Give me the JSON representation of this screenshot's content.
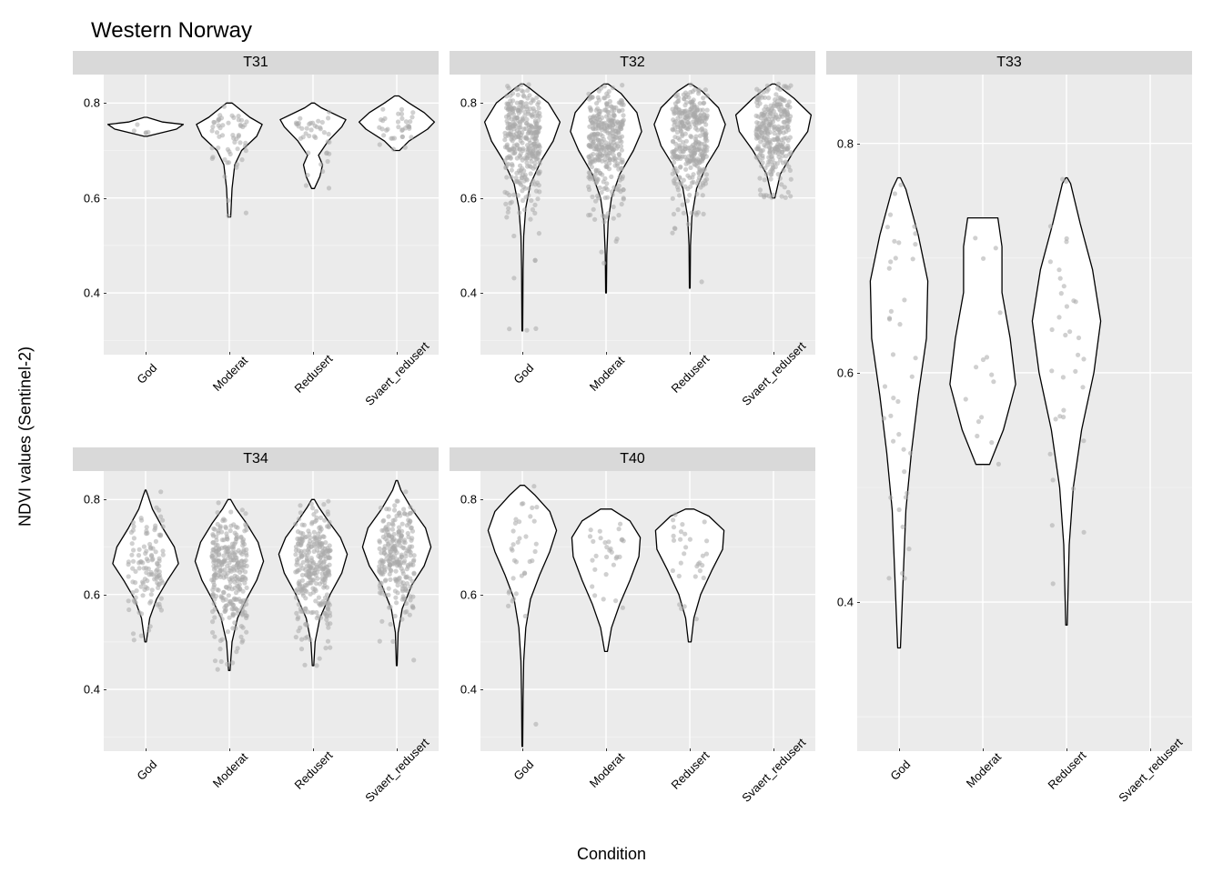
{
  "title": "Western Norway",
  "ylabel": "NDVI values (Sentinel-2)",
  "xlabel": "Condition",
  "categories": [
    "God",
    "Moderat",
    "Redusert",
    "Svaert_redusert"
  ],
  "y_ticks": [
    0.4,
    0.6,
    0.8
  ],
  "y_range": [
    0.27,
    0.86
  ],
  "panel_bg": "#ebebeb",
  "strip_bg": "#d9d9d9",
  "grid_major_color": "#ffffff",
  "grid_minor_color": "#f5f5f5",
  "violin_fill": "#ffffff",
  "violin_stroke": "#000000",
  "violin_stroke_width": 1.3,
  "point_color": "#a9a9a9",
  "point_opacity": 0.55,
  "point_radius": 2.6,
  "title_fontsize": 24,
  "axis_label_fontsize": 18,
  "tick_fontsize": 13,
  "strip_fontsize": 16,
  "jitter_width": 0.07,
  "facets": [
    {
      "label": "T31",
      "row": 0,
      "col": 0,
      "violins": {
        "God": {
          "min": 0.73,
          "max": 0.77,
          "profile": [
            [
              0.73,
              0.02
            ],
            [
              0.745,
              0.45
            ],
            [
              0.755,
              0.55
            ],
            [
              0.76,
              0.25
            ],
            [
              0.77,
              0.02
            ]
          ],
          "n": 5
        },
        "Moderat": {
          "min": 0.56,
          "max": 0.8,
          "profile": [
            [
              0.56,
              0.02
            ],
            [
              0.62,
              0.04
            ],
            [
              0.67,
              0.08
            ],
            [
              0.7,
              0.18
            ],
            [
              0.73,
              0.4
            ],
            [
              0.755,
              0.48
            ],
            [
              0.77,
              0.3
            ],
            [
              0.8,
              0.04
            ]
          ],
          "n": 55
        },
        "Redusert": {
          "min": 0.62,
          "max": 0.8,
          "profile": [
            [
              0.62,
              0.02
            ],
            [
              0.645,
              0.1
            ],
            [
              0.67,
              0.14
            ],
            [
              0.69,
              0.08
            ],
            [
              0.72,
              0.22
            ],
            [
              0.75,
              0.42
            ],
            [
              0.765,
              0.48
            ],
            [
              0.79,
              0.12
            ],
            [
              0.8,
              0.02
            ]
          ],
          "n": 40
        },
        "Svaert_redusert": {
          "min": 0.7,
          "max": 0.815,
          "profile": [
            [
              0.7,
              0.04
            ],
            [
              0.72,
              0.18
            ],
            [
              0.745,
              0.45
            ],
            [
              0.76,
              0.55
            ],
            [
              0.78,
              0.4
            ],
            [
              0.8,
              0.18
            ],
            [
              0.815,
              0.03
            ]
          ],
          "n": 35
        }
      }
    },
    {
      "label": "T32",
      "row": 0,
      "col": 1,
      "violins": {
        "God": {
          "min": 0.32,
          "max": 0.84,
          "profile": [
            [
              0.32,
              0.005
            ],
            [
              0.45,
              0.01
            ],
            [
              0.52,
              0.02
            ],
            [
              0.58,
              0.05
            ],
            [
              0.63,
              0.12
            ],
            [
              0.68,
              0.28
            ],
            [
              0.72,
              0.45
            ],
            [
              0.76,
              0.55
            ],
            [
              0.8,
              0.38
            ],
            [
              0.83,
              0.12
            ],
            [
              0.84,
              0.02
            ]
          ],
          "n": 500
        },
        "Moderat": {
          "min": 0.4,
          "max": 0.84,
          "profile": [
            [
              0.4,
              0.005
            ],
            [
              0.48,
              0.01
            ],
            [
              0.55,
              0.03
            ],
            [
              0.6,
              0.08
            ],
            [
              0.65,
              0.2
            ],
            [
              0.7,
              0.4
            ],
            [
              0.74,
              0.52
            ],
            [
              0.78,
              0.45
            ],
            [
              0.82,
              0.22
            ],
            [
              0.84,
              0.03
            ]
          ],
          "n": 500
        },
        "Redusert": {
          "min": 0.41,
          "max": 0.84,
          "profile": [
            [
              0.41,
              0.005
            ],
            [
              0.5,
              0.01
            ],
            [
              0.56,
              0.03
            ],
            [
              0.62,
              0.1
            ],
            [
              0.67,
              0.25
            ],
            [
              0.71,
              0.42
            ],
            [
              0.755,
              0.52
            ],
            [
              0.79,
              0.42
            ],
            [
              0.825,
              0.18
            ],
            [
              0.84,
              0.02
            ]
          ],
          "n": 500
        },
        "Svaert_redusert": {
          "min": 0.6,
          "max": 0.84,
          "profile": [
            [
              0.6,
              0.02
            ],
            [
              0.65,
              0.1
            ],
            [
              0.7,
              0.3
            ],
            [
              0.74,
              0.5
            ],
            [
              0.775,
              0.55
            ],
            [
              0.81,
              0.3
            ],
            [
              0.835,
              0.08
            ],
            [
              0.84,
              0.02
            ]
          ],
          "n": 300
        }
      }
    },
    {
      "label": "T33",
      "row": 0,
      "col": 2,
      "tall": true,
      "violins": {
        "God": {
          "min": 0.36,
          "max": 0.77,
          "profile": [
            [
              0.36,
              0.02
            ],
            [
              0.42,
              0.06
            ],
            [
              0.48,
              0.1
            ],
            [
              0.53,
              0.18
            ],
            [
              0.58,
              0.28
            ],
            [
              0.63,
              0.4
            ],
            [
              0.68,
              0.42
            ],
            [
              0.72,
              0.28
            ],
            [
              0.76,
              0.1
            ],
            [
              0.77,
              0.02
            ]
          ],
          "n": 40
        },
        "Moderat": {
          "min": 0.52,
          "max": 0.735,
          "profile": [
            [
              0.52,
              0.1
            ],
            [
              0.55,
              0.3
            ],
            [
              0.59,
              0.48
            ],
            [
              0.63,
              0.4
            ],
            [
              0.67,
              0.28
            ],
            [
              0.71,
              0.28
            ],
            [
              0.735,
              0.22
            ]
          ],
          "n": 15
        },
        "Redusert": {
          "min": 0.38,
          "max": 0.77,
          "profile": [
            [
              0.38,
              0.01
            ],
            [
              0.45,
              0.04
            ],
            [
              0.5,
              0.1
            ],
            [
              0.55,
              0.22
            ],
            [
              0.6,
              0.4
            ],
            [
              0.645,
              0.5
            ],
            [
              0.69,
              0.38
            ],
            [
              0.73,
              0.2
            ],
            [
              0.765,
              0.06
            ],
            [
              0.77,
              0.01
            ]
          ],
          "n": 35
        },
        "Svaert_redusert": null
      }
    },
    {
      "label": "T34",
      "row": 1,
      "col": 0,
      "violins": {
        "God": {
          "min": 0.5,
          "max": 0.82,
          "profile": [
            [
              0.5,
              0.01
            ],
            [
              0.55,
              0.06
            ],
            [
              0.59,
              0.16
            ],
            [
              0.63,
              0.32
            ],
            [
              0.665,
              0.48
            ],
            [
              0.7,
              0.42
            ],
            [
              0.74,
              0.25
            ],
            [
              0.78,
              0.1
            ],
            [
              0.81,
              0.03
            ],
            [
              0.82,
              0.005
            ]
          ],
          "n": 120
        },
        "Moderat": {
          "min": 0.44,
          "max": 0.8,
          "profile": [
            [
              0.44,
              0.01
            ],
            [
              0.5,
              0.04
            ],
            [
              0.55,
              0.12
            ],
            [
              0.59,
              0.25
            ],
            [
              0.63,
              0.4
            ],
            [
              0.67,
              0.5
            ],
            [
              0.71,
              0.42
            ],
            [
              0.75,
              0.25
            ],
            [
              0.78,
              0.1
            ],
            [
              0.8,
              0.02
            ]
          ],
          "n": 300
        },
        "Redusert": {
          "min": 0.45,
          "max": 0.8,
          "profile": [
            [
              0.45,
              0.01
            ],
            [
              0.5,
              0.03
            ],
            [
              0.55,
              0.1
            ],
            [
              0.6,
              0.25
            ],
            [
              0.645,
              0.42
            ],
            [
              0.685,
              0.5
            ],
            [
              0.72,
              0.4
            ],
            [
              0.755,
              0.22
            ],
            [
              0.785,
              0.08
            ],
            [
              0.8,
              0.02
            ]
          ],
          "n": 300
        },
        "Svaert_redusert": {
          "min": 0.45,
          "max": 0.84,
          "profile": [
            [
              0.45,
              0.005
            ],
            [
              0.52,
              0.02
            ],
            [
              0.57,
              0.08
            ],
            [
              0.62,
              0.22
            ],
            [
              0.66,
              0.4
            ],
            [
              0.7,
              0.5
            ],
            [
              0.74,
              0.42
            ],
            [
              0.78,
              0.22
            ],
            [
              0.82,
              0.06
            ],
            [
              0.84,
              0.01
            ]
          ],
          "n": 250
        }
      }
    },
    {
      "label": "T40",
      "row": 1,
      "col": 1,
      "violins": {
        "God": {
          "min": 0.28,
          "max": 0.83,
          "profile": [
            [
              0.28,
              0.005
            ],
            [
              0.38,
              0.01
            ],
            [
              0.46,
              0.02
            ],
            [
              0.53,
              0.05
            ],
            [
              0.59,
              0.12
            ],
            [
              0.64,
              0.25
            ],
            [
              0.69,
              0.4
            ],
            [
              0.735,
              0.5
            ],
            [
              0.775,
              0.4
            ],
            [
              0.81,
              0.18
            ],
            [
              0.83,
              0.03
            ]
          ],
          "n": 35
        },
        "Moderat": {
          "min": 0.48,
          "max": 0.78,
          "profile": [
            [
              0.48,
              0.02
            ],
            [
              0.53,
              0.08
            ],
            [
              0.58,
              0.2
            ],
            [
              0.63,
              0.35
            ],
            [
              0.68,
              0.48
            ],
            [
              0.72,
              0.5
            ],
            [
              0.755,
              0.35
            ],
            [
              0.78,
              0.08
            ]
          ],
          "n": 30
        },
        "Redusert": {
          "min": 0.5,
          "max": 0.78,
          "profile": [
            [
              0.5,
              0.02
            ],
            [
              0.55,
              0.06
            ],
            [
              0.6,
              0.16
            ],
            [
              0.65,
              0.32
            ],
            [
              0.695,
              0.48
            ],
            [
              0.735,
              0.5
            ],
            [
              0.765,
              0.28
            ],
            [
              0.78,
              0.06
            ]
          ],
          "n": 30
        },
        "Svaert_redusert": null
      }
    }
  ]
}
